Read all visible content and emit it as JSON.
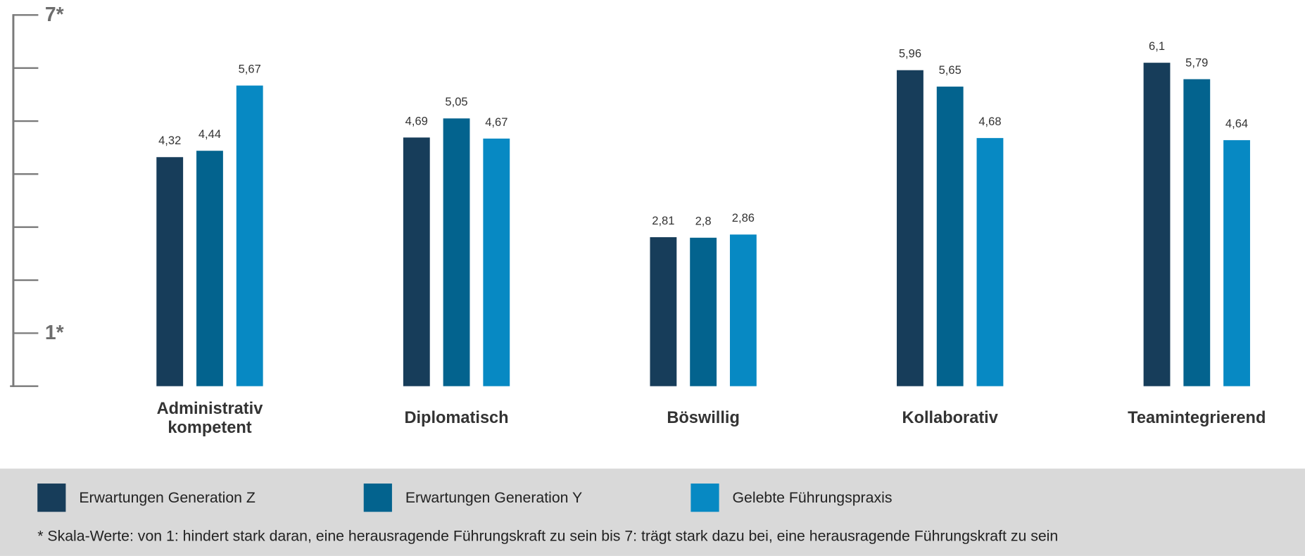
{
  "chart_data": {
    "type": "bar",
    "categories": [
      "Administrativ kompetent",
      "Diplomatisch",
      "Böswillig",
      "Kollaborativ",
      "Teamintegrierend"
    ],
    "series": [
      {
        "name": "Erwartungen Generation Z",
        "color": "#173d5a",
        "values": [
          4.32,
          4.69,
          2.81,
          5.96,
          6.1
        ],
        "value_labels": [
          "4,32",
          "4,69",
          "2,81",
          "5,96",
          "6,1"
        ]
      },
      {
        "name": "Erwartungen Generation Y",
        "color": "#03638e",
        "values": [
          4.44,
          5.05,
          2.8,
          5.65,
          5.79
        ],
        "value_labels": [
          "4,44",
          "5,05",
          "2,8",
          "5,65",
          "5,79"
        ]
      },
      {
        "name": "Gelebte Führungspraxis",
        "color": "#0789c3",
        "values": [
          5.67,
          4.67,
          2.86,
          4.68,
          4.64
        ],
        "value_labels": [
          "5,67",
          "4,67",
          "2,86",
          "4,68",
          "4,64"
        ]
      }
    ],
    "ylim": [
      0,
      7
    ],
    "yticks": [
      {
        "value": 1,
        "label": "1*"
      },
      {
        "value": 7,
        "label": "7*"
      }
    ],
    "minor_yticks": [
      0,
      2,
      3,
      4,
      5,
      6
    ],
    "footnote": "* Skala-Werte: von 1: hindert stark daran, eine herausragende Führungskraft zu sein bis 7: trägt stark dazu bei, eine herausragende Führungskraft zu sein"
  }
}
